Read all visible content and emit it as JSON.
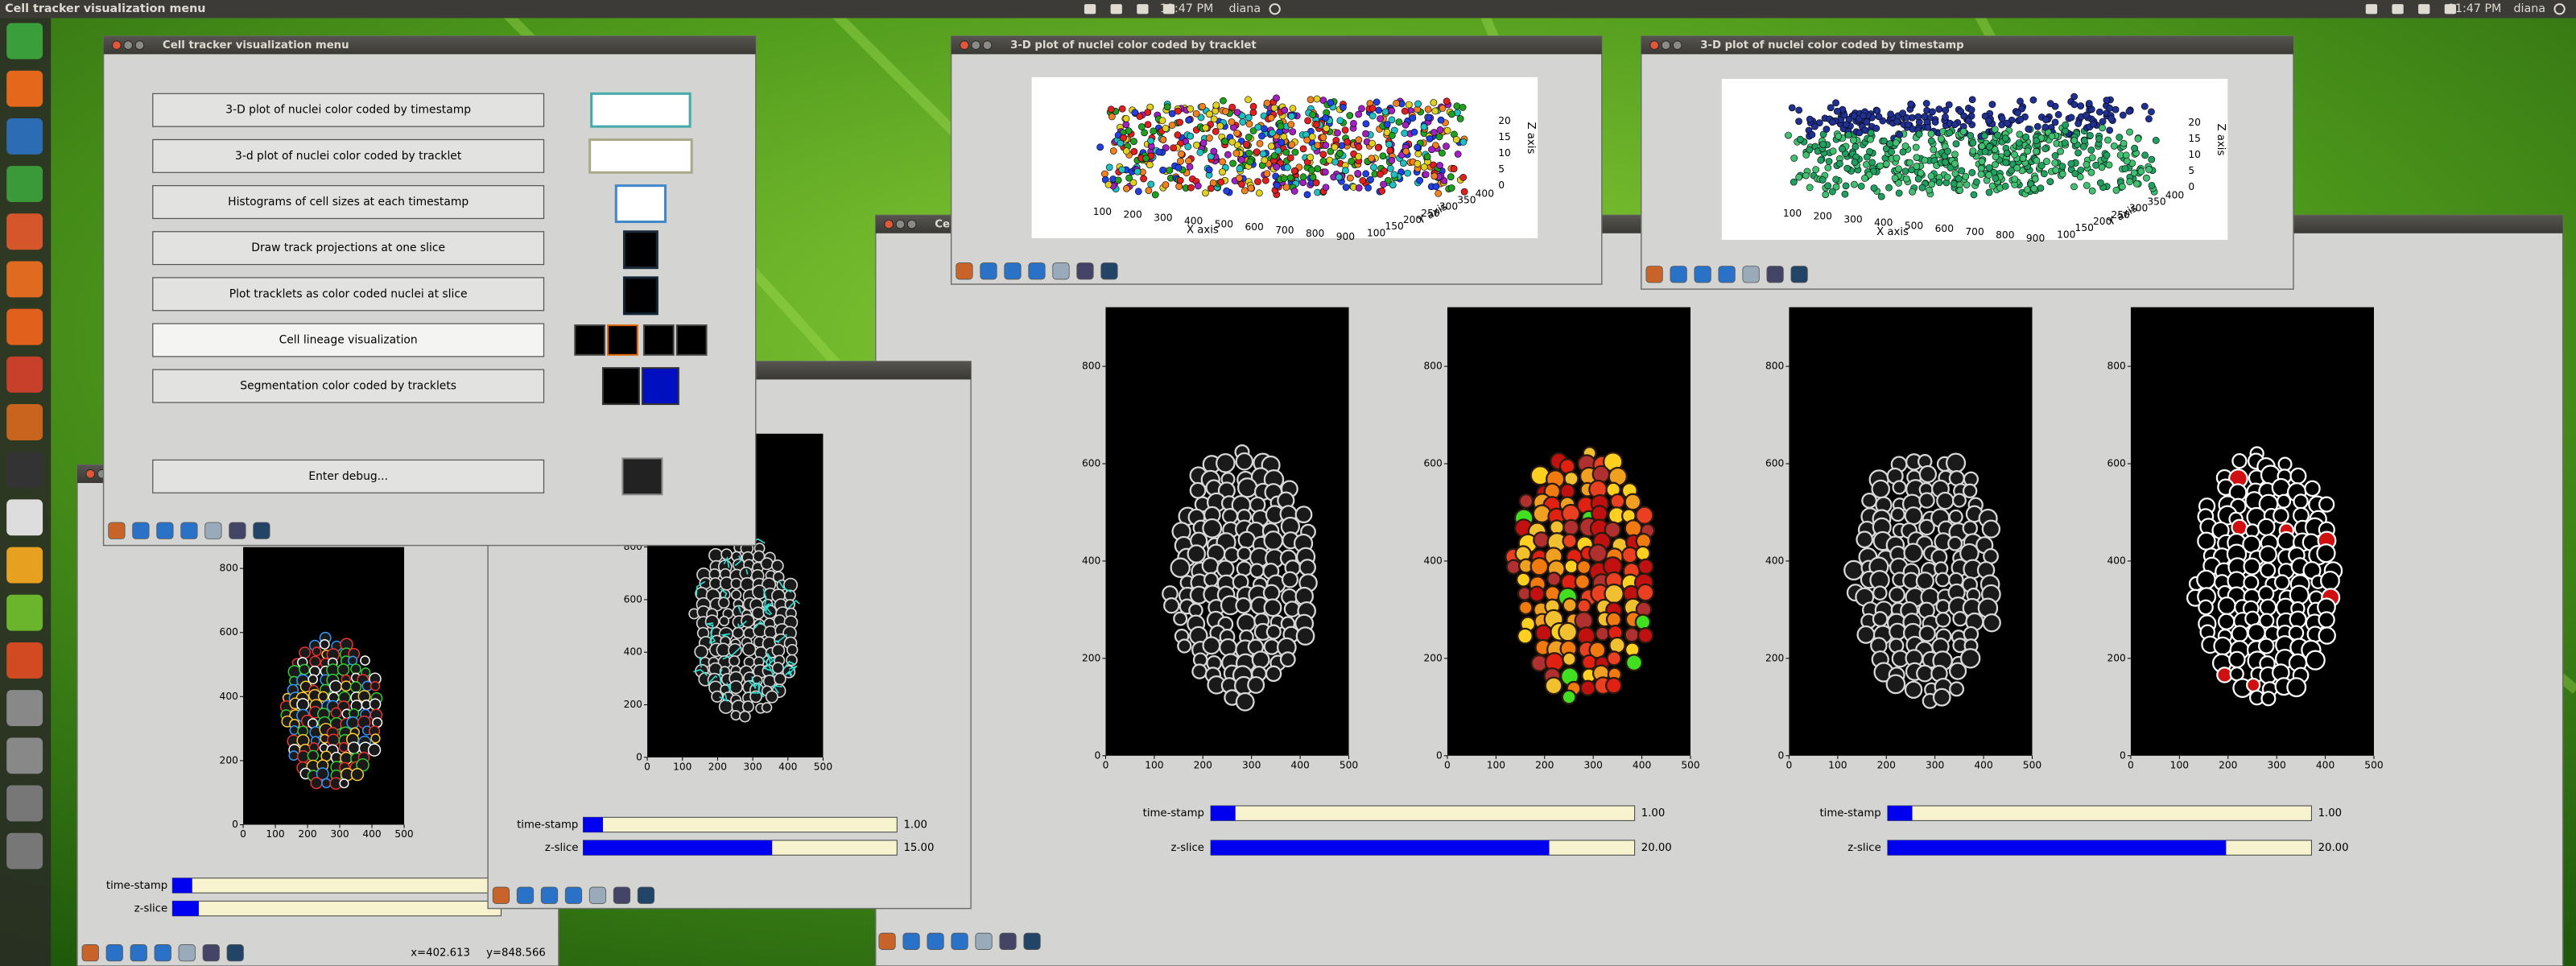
{
  "top_bar": {
    "app_title": "Cell tracker visualization menu",
    "clock": "11:47 PM",
    "user": "diana"
  },
  "menu_window": {
    "title": "Cell tracker visualization menu",
    "buttons": [
      "3-D plot of nuclei color coded by timestamp",
      "3-d plot of nuclei color coded by tracklet",
      "Histograms of cell sizes at each timestamp",
      "Draw track projections at one slice",
      "Plot tracklets as color coded nuclei at slice",
      "Cell lineage visualization",
      "Segmentation color coded by tracklets"
    ],
    "debug_button": "Enter debug..."
  },
  "tracklet_3d_window": {
    "title": "3-D plot of nuclei color coded by tracklet"
  },
  "timestamp_3d_window": {
    "title": "3-D plot of nuclei color coded by timestamp"
  },
  "axes_3d": {
    "x_label": "X axis",
    "y_label": "Y axis",
    "z_label": "Z axis",
    "xticks": [
      100,
      200,
      300,
      400,
      500,
      600,
      700,
      800,
      900
    ],
    "yticks": [
      100,
      150,
      200,
      250,
      300,
      350,
      400
    ],
    "zticks": [
      0,
      5,
      10,
      15,
      20
    ]
  },
  "image_axes": {
    "xticks": [
      0,
      100,
      200,
      300,
      400,
      500
    ],
    "yticks": [
      0,
      200,
      400,
      600,
      800
    ]
  },
  "big_window": {
    "title": "Cell",
    "slider_groups": [
      [
        {
          "label": "time-stamp",
          "value": "1.00"
        },
        {
          "label": "z-slice",
          "value": "20.00"
        }
      ],
      [
        {
          "label": "time-stamp",
          "value": "1.00"
        },
        {
          "label": "z-slice",
          "value": "20.00"
        }
      ]
    ]
  },
  "middle_window": {
    "sliders": [
      {
        "label": "time-stamp",
        "value": "1.00"
      },
      {
        "label": "z-slice",
        "value": "15.00"
      }
    ]
  },
  "left_window": {
    "sliders": [
      {
        "label": "time-stamp"
      },
      {
        "label": "z-slice"
      }
    ],
    "status_x": "x=402.613",
    "status_y": "y=848.566"
  }
}
